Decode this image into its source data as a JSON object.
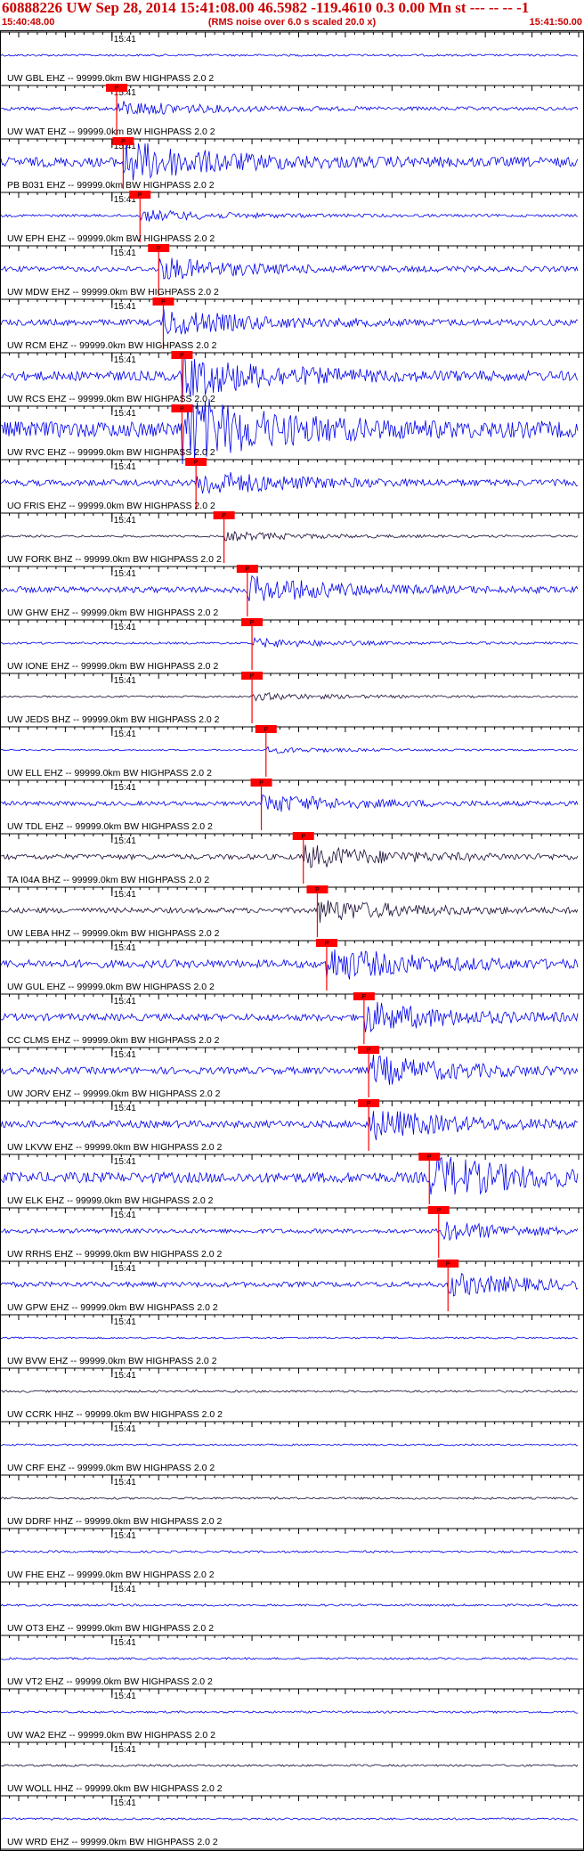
{
  "header": {
    "title": "60888226 UW Sep 28, 2014 15:41:08.00   46.5982 -119.4610  0.3 0.00 Mn st --- -- --  -1",
    "start_time": "15:40:48.00",
    "subtitle": "(RMS noise over 6.0 s scaled 20.0 x)",
    "end_time": "15:41:50.00"
  },
  "colors": {
    "header_text": "#cc0000",
    "trace_blue": "#0000ee",
    "trace_dark": "#1a0a33",
    "pick": "#ff0000",
    "grid": "#000000"
  },
  "chart_data": {
    "type": "line",
    "title": "60888226 UW Sep 28, 2014 15:41:08.00   46.5982 -119.4610  0.3 0.00 Mn st --- -- --  -1",
    "subtitle": "(RMS noise over 6.0 s scaled 20.0 x)",
    "x_unit": "time",
    "xlim": [
      "15:40:48.00",
      "15:41:50.00"
    ],
    "minute_mark": "15:41",
    "pick_label": "P",
    "series": [
      {
        "name": "UW GBL EHZ -- 99999.0km BW  HIGHPASS  2.0  2",
        "color": "blue",
        "amplitude": 0.12,
        "pick_time": null
      },
      {
        "name": "UW WAT EHZ -- 99999.0km BW  HIGHPASS  2.0  2",
        "color": "blue",
        "amplitude": 0.2,
        "pick_time": "15:41:00.5"
      },
      {
        "name": "PB B031 EHZ -- 99999.0km BW  HIGHPASS  2.0  2",
        "color": "blue",
        "amplitude": 0.55,
        "pick_time": "15:41:01.2"
      },
      {
        "name": "UW EPH EHZ -- 99999.0km BW  HIGHPASS  2.0  2",
        "color": "blue",
        "amplitude": 0.15,
        "pick_time": "15:41:03.0"
      },
      {
        "name": "UW MDW EHZ -- 99999.0km BW  HIGHPASS  2.0  2",
        "color": "blue",
        "amplitude": 0.3,
        "pick_time": "15:41:05.0"
      },
      {
        "name": "UW RCM EHZ -- 99999.0km BW  HIGHPASS  2.0  2",
        "color": "blue",
        "amplitude": 0.35,
        "pick_time": "15:41:05.5"
      },
      {
        "name": "UW RCS EHZ -- 99999.0km BW  HIGHPASS  2.0  2",
        "color": "blue",
        "amplitude": 0.55,
        "pick_time": "15:41:07.5"
      },
      {
        "name": "UW RVC EHZ -- 99999.0km BW  HIGHPASS  2.0  2",
        "color": "blue",
        "amplitude": 0.9,
        "pick_time": "15:41:07.5"
      },
      {
        "name": "UO FRIS EHZ -- 99999.0km BW  HIGHPASS  2.0  2",
        "color": "blue",
        "amplitude": 0.35,
        "pick_time": "15:41:09.0"
      },
      {
        "name": "UW FORK BHZ -- 99999.0km BW  HIGHPASS  2.0  2",
        "color": "dark",
        "amplitude": 0.12,
        "pick_time": "15:41:12.0"
      },
      {
        "name": "UW GHW EHZ -- 99999.0km BW  HIGHPASS  2.0  2",
        "color": "blue",
        "amplitude": 0.35,
        "pick_time": "15:41:14.5"
      },
      {
        "name": "UW IONE EHZ -- 99999.0km BW  HIGHPASS  2.0  2",
        "color": "blue",
        "amplitude": 0.12,
        "pick_time": "15:41:15.0"
      },
      {
        "name": "UW JEDS BHZ -- 99999.0km BW  HIGHPASS  2.0  2",
        "color": "dark",
        "amplitude": 0.1,
        "pick_time": "15:41:15.0"
      },
      {
        "name": "UW ELL EHZ -- 99999.0km BW  HIGHPASS  2.0  2",
        "color": "blue",
        "amplitude": 0.08,
        "pick_time": "15:41:16.5"
      },
      {
        "name": "UW TDL EHZ -- 99999.0km BW  HIGHPASS  2.0  2",
        "color": "blue",
        "amplitude": 0.25,
        "pick_time": "15:41:16.0"
      },
      {
        "name": "TA I04A BHZ -- 99999.0km BW  HIGHPASS  2.0  2",
        "color": "dark",
        "amplitude": 0.3,
        "pick_time": "15:41:20.5"
      },
      {
        "name": "UW LEBA HHZ -- 99999.0km BW  HIGHPASS  2.0  2",
        "color": "dark",
        "amplitude": 0.3,
        "pick_time": "15:41:22.0"
      },
      {
        "name": "UW GUL EHZ -- 99999.0km BW  HIGHPASS  2.0  2",
        "color": "blue",
        "amplitude": 0.45,
        "pick_time": "15:41:23.0"
      },
      {
        "name": "CC CLMS EHZ -- 99999.0km BW  HIGHPASS  2.0  2",
        "color": "blue",
        "amplitude": 0.4,
        "pick_time": "15:41:27.0"
      },
      {
        "name": "UW JORV EHZ -- 99999.0km BW  HIGHPASS  2.0  2",
        "color": "blue",
        "amplitude": 0.4,
        "pick_time": "15:41:27.5"
      },
      {
        "name": "UW LKVW EHZ -- 99999.0km BW  HIGHPASS  2.0  2",
        "color": "blue",
        "amplitude": 0.4,
        "pick_time": "15:41:27.5"
      },
      {
        "name": "UW ELK EHZ -- 99999.0km BW  HIGHPASS  2.0  2",
        "color": "blue",
        "amplitude": 0.6,
        "pick_time": "15:41:34.0"
      },
      {
        "name": "UW RRHS EHZ -- 99999.0km BW  HIGHPASS  2.0  2",
        "color": "blue",
        "amplitude": 0.25,
        "pick_time": "15:41:35.0"
      },
      {
        "name": "UW GPW EHZ -- 99999.0km BW  HIGHPASS  2.0  2",
        "color": "blue",
        "amplitude": 0.3,
        "pick_time": "15:41:36.0"
      },
      {
        "name": "UW BVW EHZ -- 99999.0km BW  HIGHPASS  2.0  2",
        "color": "blue",
        "amplitude": 0.1,
        "pick_time": null
      },
      {
        "name": "UW CCRK HHZ -- 99999.0km BW  HIGHPASS  2.0  2",
        "color": "dark",
        "amplitude": 0.12,
        "pick_time": null
      },
      {
        "name": "UW CRF EHZ -- 99999.0km BW  HIGHPASS  2.0  2",
        "color": "blue",
        "amplitude": 0.1,
        "pick_time": null
      },
      {
        "name": "UW DDRF HHZ -- 99999.0km BW  HIGHPASS  2.0  2",
        "color": "dark",
        "amplitude": 0.12,
        "pick_time": null
      },
      {
        "name": "UW FHE EHZ -- 99999.0km BW  HIGHPASS  2.0  2",
        "color": "blue",
        "amplitude": 0.12,
        "pick_time": null
      },
      {
        "name": "UW OT3 EHZ -- 99999.0km BW  HIGHPASS  2.0  2",
        "color": "blue",
        "amplitude": 0.12,
        "pick_time": null
      },
      {
        "name": "UW VT2 EHZ -- 99999.0km BW  HIGHPASS  2.0  2",
        "color": "blue",
        "amplitude": 0.12,
        "pick_time": null
      },
      {
        "name": "UW WA2 EHZ -- 99999.0km BW  HIGHPASS  2.0  2",
        "color": "blue",
        "amplitude": 0.12,
        "pick_time": null
      },
      {
        "name": "UW WOLL HHZ -- 99999.0km BW  HIGHPASS  2.0  2",
        "color": "dark",
        "amplitude": 0.12,
        "pick_time": null
      },
      {
        "name": "UW WRD EHZ -- 99999.0km BW  HIGHPASS  2.0  2",
        "color": "blue",
        "amplitude": 0.12,
        "pick_time": null
      }
    ]
  }
}
